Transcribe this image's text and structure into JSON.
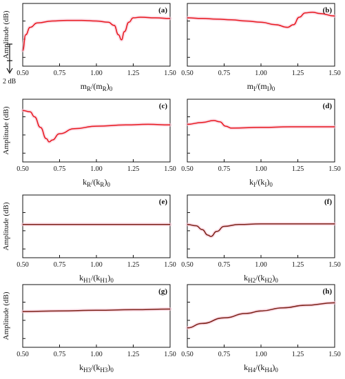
{
  "scale_bar": {
    "label": "2 dB",
    "value_db": 2
  },
  "chart_data": [
    {
      "type": "line",
      "panel_label": "(a)",
      "ylabel": "Amplitude (dB)",
      "x_base": "m",
      "x_sub": "R",
      "x_tail": "/(m",
      "x_sub2": "R",
      "x_close": ")",
      "x_sub3": "0",
      "xlim": [
        0.5,
        1.5
      ],
      "xticks": [
        "0.50",
        "0.75",
        "1.00",
        "1.25",
        "1.50"
      ],
      "yticks_visible": 3,
      "colors": {
        "main": "#e8141b",
        "shadow": "#f7c6d6"
      },
      "points": [
        [
          0.5,
          0.25
        ],
        [
          0.52,
          0.5
        ],
        [
          0.55,
          0.62
        ],
        [
          0.6,
          0.69
        ],
        [
          0.7,
          0.72
        ],
        [
          0.8,
          0.73
        ],
        [
          0.9,
          0.73
        ],
        [
          1.0,
          0.72
        ],
        [
          1.08,
          0.7
        ],
        [
          1.12,
          0.65
        ],
        [
          1.15,
          0.5
        ],
        [
          1.17,
          0.42
        ],
        [
          1.19,
          0.55
        ],
        [
          1.22,
          0.7
        ],
        [
          1.25,
          0.77
        ],
        [
          1.3,
          0.78
        ],
        [
          1.4,
          0.77
        ],
        [
          1.5,
          0.76
        ]
      ]
    },
    {
      "type": "line",
      "panel_label": "(b)",
      "x_base": "m",
      "x_sub": "I",
      "x_tail": "/(m",
      "x_sub2": "I",
      "x_close": ")",
      "x_sub3": "0",
      "xlim": [
        0.5,
        1.5
      ],
      "xticks": [
        "0.50",
        "0.75",
        "1.00",
        "1.25",
        "1.50"
      ],
      "yticks_visible": 3,
      "colors": {
        "main": "#e8141b",
        "shadow": "#f7c6d6"
      },
      "points": [
        [
          0.5,
          0.77
        ],
        [
          0.6,
          0.76
        ],
        [
          0.7,
          0.75
        ],
        [
          0.8,
          0.74
        ],
        [
          0.9,
          0.72
        ],
        [
          1.0,
          0.7
        ],
        [
          1.1,
          0.66
        ],
        [
          1.18,
          0.62
        ],
        [
          1.22,
          0.66
        ],
        [
          1.26,
          0.78
        ],
        [
          1.3,
          0.85
        ],
        [
          1.35,
          0.86
        ],
        [
          1.4,
          0.84
        ],
        [
          1.5,
          0.8
        ]
      ]
    },
    {
      "type": "line",
      "panel_label": "(c)",
      "ylabel": "Amplitude (dB)",
      "x_base": "k",
      "x_sub": "R",
      "x_tail": "/(k",
      "x_sub2": "R",
      "x_close": ")",
      "x_sub3": "0",
      "xlim": [
        0.5,
        1.5
      ],
      "xticks": [
        "0.50",
        "0.75",
        "1.00",
        "1.25",
        "1.50"
      ],
      "yticks_visible": 3,
      "colors": {
        "main": "#e8141b",
        "shadow": "#f7c6d6"
      },
      "points": [
        [
          0.5,
          0.82
        ],
        [
          0.55,
          0.8
        ],
        [
          0.58,
          0.72
        ],
        [
          0.62,
          0.55
        ],
        [
          0.66,
          0.37
        ],
        [
          0.68,
          0.32
        ],
        [
          0.7,
          0.35
        ],
        [
          0.75,
          0.45
        ],
        [
          0.85,
          0.53
        ],
        [
          1.0,
          0.57
        ],
        [
          1.2,
          0.59
        ],
        [
          1.35,
          0.6
        ],
        [
          1.5,
          0.59
        ]
      ]
    },
    {
      "type": "line",
      "panel_label": "(d)",
      "x_base": "k",
      "x_sub": "I",
      "x_tail": "/(k",
      "x_sub2": "I",
      "x_close": ")",
      "x_sub3": "0",
      "xlim": [
        0.5,
        1.5
      ],
      "xticks": [
        "0.50",
        "0.75",
        "1.00",
        "1.25",
        "1.50"
      ],
      "yticks_visible": 3,
      "colors": {
        "main": "#e8141b",
        "shadow": "#f7c6d6"
      },
      "points": [
        [
          0.5,
          0.6
        ],
        [
          0.6,
          0.63
        ],
        [
          0.68,
          0.66
        ],
        [
          0.72,
          0.64
        ],
        [
          0.76,
          0.57
        ],
        [
          0.8,
          0.54
        ],
        [
          1.0,
          0.55
        ],
        [
          1.2,
          0.56
        ],
        [
          1.5,
          0.56
        ]
      ]
    },
    {
      "type": "line",
      "panel_label": "(e)",
      "ylabel": "Amplitude (dB)",
      "x_base": "k",
      "x_sub": "H1",
      "x_tail": "/(k",
      "x_sub2": "H1",
      "x_close": ")",
      "x_sub3": "0",
      "xlim": [
        0.5,
        1.5
      ],
      "xticks": [
        "0.50",
        "0.75",
        "1.00",
        "1.25",
        "1.50"
      ],
      "yticks_visible": 3,
      "colors": {
        "main": "#7a1d14",
        "shadow": "#f7c6d6"
      },
      "points": [
        [
          0.5,
          0.53
        ],
        [
          0.75,
          0.53
        ],
        [
          1.0,
          0.53
        ],
        [
          1.25,
          0.53
        ],
        [
          1.5,
          0.53
        ]
      ]
    },
    {
      "type": "line",
      "panel_label": "(f)",
      "x_base": "k",
      "x_sub": "H2",
      "x_tail": "/(k",
      "x_sub2": "H2",
      "x_close": ")",
      "x_sub3": "0",
      "xlim": [
        0.5,
        1.5
      ],
      "xticks": [
        "0.50",
        "0.75",
        "1.00",
        "1.25",
        "1.50"
      ],
      "yticks_visible": 3,
      "colors": {
        "main": "#7a1d14",
        "shadow": "#f7c6d6"
      },
      "points": [
        [
          0.5,
          0.53
        ],
        [
          0.56,
          0.51
        ],
        [
          0.6,
          0.45
        ],
        [
          0.64,
          0.36
        ],
        [
          0.66,
          0.34
        ],
        [
          0.7,
          0.42
        ],
        [
          0.75,
          0.5
        ],
        [
          0.85,
          0.53
        ],
        [
          1.0,
          0.54
        ],
        [
          1.5,
          0.54
        ]
      ]
    },
    {
      "type": "line",
      "panel_label": "(g)",
      "ylabel": "Amplitude (dB)",
      "x_base": "k",
      "x_sub": "H3",
      "x_tail": "/(k",
      "x_sub2": "H3",
      "x_close": ")",
      "x_sub3": "0",
      "xlim": [
        0.5,
        1.5
      ],
      "xticks": [
        "0.50",
        "0.75",
        "1.00",
        "1.25",
        "1.50"
      ],
      "yticks_visible": 3,
      "colors": {
        "main": "#7a1d14",
        "shadow": "#f7c6d6"
      },
      "points": [
        [
          0.5,
          0.57
        ],
        [
          0.75,
          0.58
        ],
        [
          1.0,
          0.59
        ],
        [
          1.25,
          0.6
        ],
        [
          1.5,
          0.61
        ]
      ]
    },
    {
      "type": "line",
      "panel_label": "(h)",
      "x_base": "k",
      "x_sub": "H4",
      "x_tail": "/(k",
      "x_sub2": "H4",
      "x_close": ")",
      "x_sub3": "0",
      "xlim": [
        0.5,
        1.5
      ],
      "xticks": [
        "0.50",
        "0.75",
        "1.00",
        "1.25",
        "1.50"
      ],
      "yticks_visible": 3,
      "colors": {
        "main": "#7a1d14",
        "shadow": "#f7c6d6"
      },
      "points": [
        [
          0.5,
          0.31
        ],
        [
          0.6,
          0.38
        ],
        [
          0.75,
          0.47
        ],
        [
          0.9,
          0.54
        ],
        [
          1.0,
          0.58
        ],
        [
          1.15,
          0.63
        ],
        [
          1.3,
          0.67
        ],
        [
          1.5,
          0.71
        ]
      ]
    }
  ]
}
